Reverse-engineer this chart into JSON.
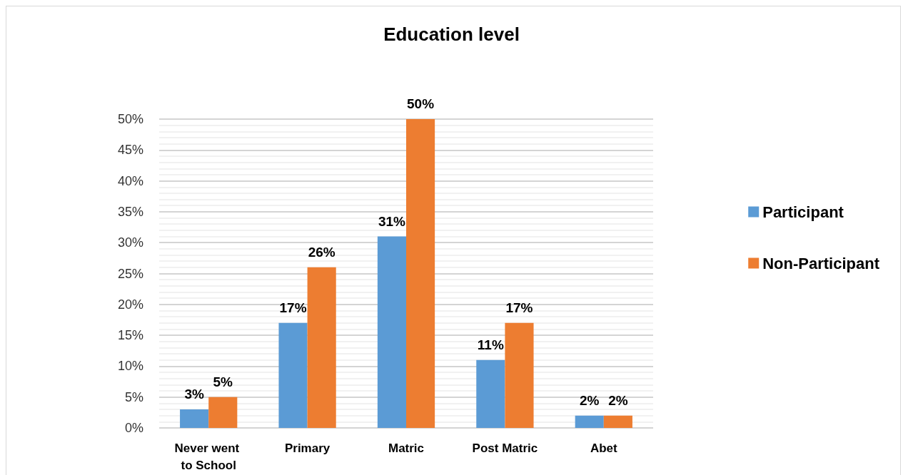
{
  "chart_data": {
    "type": "bar",
    "title": "Education level",
    "categories": [
      "Never went to School",
      "Primary",
      "Matric",
      "Post Matric",
      "Abet"
    ],
    "series": [
      {
        "name": "Participant",
        "color": "#5b9bd5",
        "values": [
          3,
          17,
          31,
          11,
          2
        ],
        "value_labels": [
          "3%",
          "17%",
          "31%",
          "11%",
          "2%"
        ]
      },
      {
        "name": "Non-Participant",
        "color": "#ed7d31",
        "values": [
          5,
          26,
          50,
          17,
          2
        ],
        "value_labels": [
          "5%",
          "26%",
          "50%",
          "17%",
          "2%"
        ]
      }
    ],
    "ylim": [
      0,
      50
    ],
    "yticks": [
      {
        "value": 0,
        "label": "0%"
      },
      {
        "value": 5,
        "label": "5%"
      },
      {
        "value": 10,
        "label": "10%"
      },
      {
        "value": 15,
        "label": "15%"
      },
      {
        "value": 20,
        "label": "20%"
      },
      {
        "value": 25,
        "label": "25%"
      },
      {
        "value": 30,
        "label": "30%"
      },
      {
        "value": 35,
        "label": "35%"
      },
      {
        "value": 40,
        "label": "40%"
      },
      {
        "value": 45,
        "label": "45%"
      },
      {
        "value": 50,
        "label": "50%"
      }
    ],
    "grid": true,
    "legend": "right"
  }
}
